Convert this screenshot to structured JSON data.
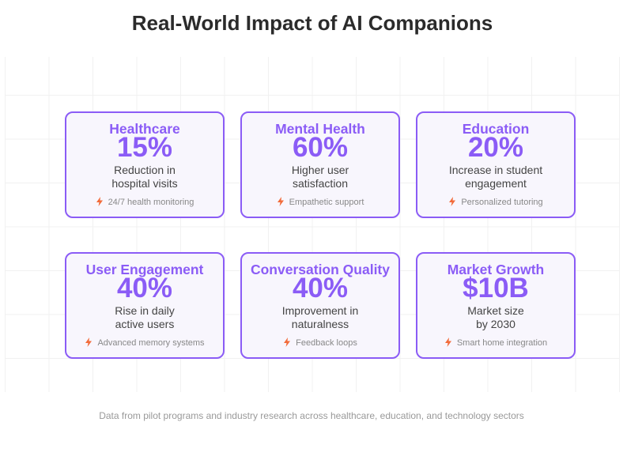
{
  "title": "Real-World Impact of AI Companions",
  "cards": [
    {
      "title": "Healthcare",
      "value": "15%",
      "desc_line1": "Reduction in",
      "desc_line2": "hospital visits",
      "note": "24/7 health monitoring",
      "note_icon": "lightning-bolt-icon"
    },
    {
      "title": "Mental Health",
      "value": "60%",
      "desc_line1": "Higher user",
      "desc_line2": "satisfaction",
      "note": "Empathetic support",
      "note_icon": "lightning-bolt-icon"
    },
    {
      "title": "Education",
      "value": "20%",
      "desc_line1": "Increase in student",
      "desc_line2": "engagement",
      "note": "Personalized tutoring",
      "note_icon": "lightning-bolt-icon"
    },
    {
      "title": "User Engagement",
      "value": "40%",
      "desc_line1": "Rise in daily",
      "desc_line2": "active users",
      "note": "Advanced memory systems",
      "note_icon": "lightning-bolt-icon"
    },
    {
      "title": "Conversation Quality",
      "value": "40%",
      "desc_line1": "Improvement in",
      "desc_line2": "naturalness",
      "note": "Feedback loops",
      "note_icon": "lightning-bolt-icon"
    },
    {
      "title": "Market Growth",
      "value": "$10B",
      "desc_line1": "Market size",
      "desc_line2": "by 2030",
      "note": "Smart home integration",
      "note_icon": "lightning-bolt-icon"
    }
  ],
  "footer": "Data from pilot programs and industry research across healthcare, education, and technology sectors",
  "colors": {
    "accent": "#8b5cf6",
    "bolt": "#f26b3a",
    "card_bg": "#f8f6fd"
  }
}
